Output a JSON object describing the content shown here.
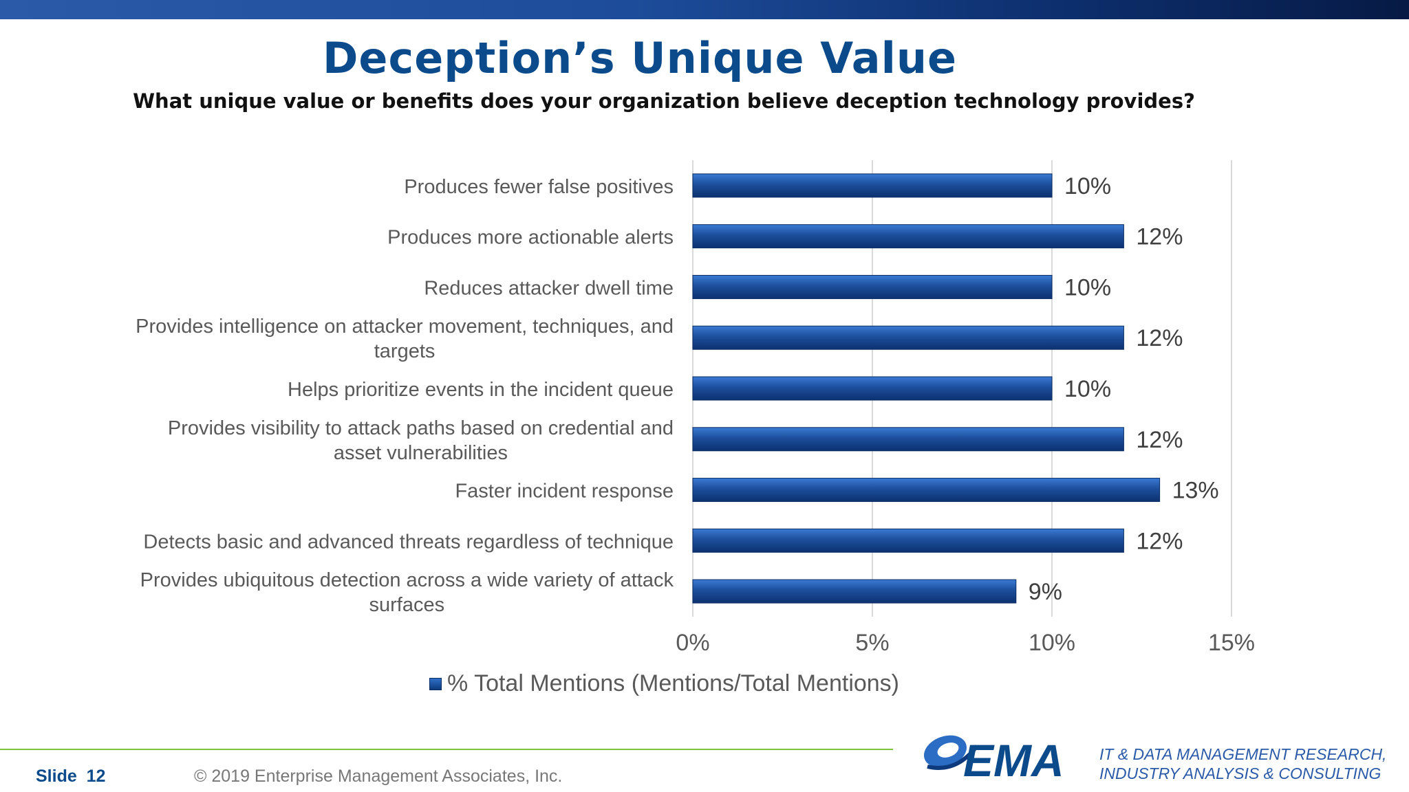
{
  "header": {
    "title": "Deception’s Unique Value",
    "subtitle": "What unique value or benefits does your organization believe deception technology provides?"
  },
  "chart_data": {
    "type": "bar",
    "orientation": "horizontal",
    "categories": [
      "Produces fewer false positives",
      "Produces more actionable alerts",
      "Reduces attacker dwell time",
      "Provides intelligence on attacker movement, techniques, and targets",
      "Helps prioritize events in the incident queue",
      "Provides visibility to attack paths based on credential and asset vulnerabilities",
      "Faster incident response",
      "Detects basic and advanced threats regardless of technique",
      "Provides ubiquitous detection across a wide variety of attack surfaces"
    ],
    "category_lines": [
      [
        "Produces fewer false positives"
      ],
      [
        "Produces more actionable alerts"
      ],
      [
        "Reduces attacker dwell time"
      ],
      [
        "Provides intelligence on attacker movement, techniques, and",
        "targets"
      ],
      [
        "Helps prioritize events in the incident queue"
      ],
      [
        "Provides visibility to attack paths based on credential and",
        "asset vulnerabilities"
      ],
      [
        "Faster incident response"
      ],
      [
        "Detects basic and advanced threats regardless of technique"
      ],
      [
        "Provides ubiquitous detection across a wide variety of attack",
        "surfaces"
      ]
    ],
    "series": [
      {
        "name": "% Total Mentions (Mentions/Total Mentions)",
        "values": [
          10,
          12,
          10,
          12,
          10,
          12,
          13,
          12,
          9
        ],
        "labels": [
          "10%",
          "12%",
          "10%",
          "12%",
          "10%",
          "12%",
          "13%",
          "12%",
          "9%"
        ]
      }
    ],
    "xlim": [
      0,
      15
    ],
    "xticks": [
      0,
      5,
      10,
      15
    ],
    "xtick_labels": [
      "0%",
      "5%",
      "10%",
      "15%"
    ],
    "grid": true,
    "legend_position": "bottom",
    "bar_color": "#1d4f9c"
  },
  "footer": {
    "slide_label": "Slide",
    "slide_number": "12",
    "copyright": "© 2019 Enterprise Management Associates, Inc.",
    "logo_text": "EMA",
    "tagline_line1": "IT & DATA MANAGEMENT RESEARCH,",
    "tagline_line2": "INDUSTRY ANALYSIS & CONSULTING"
  }
}
